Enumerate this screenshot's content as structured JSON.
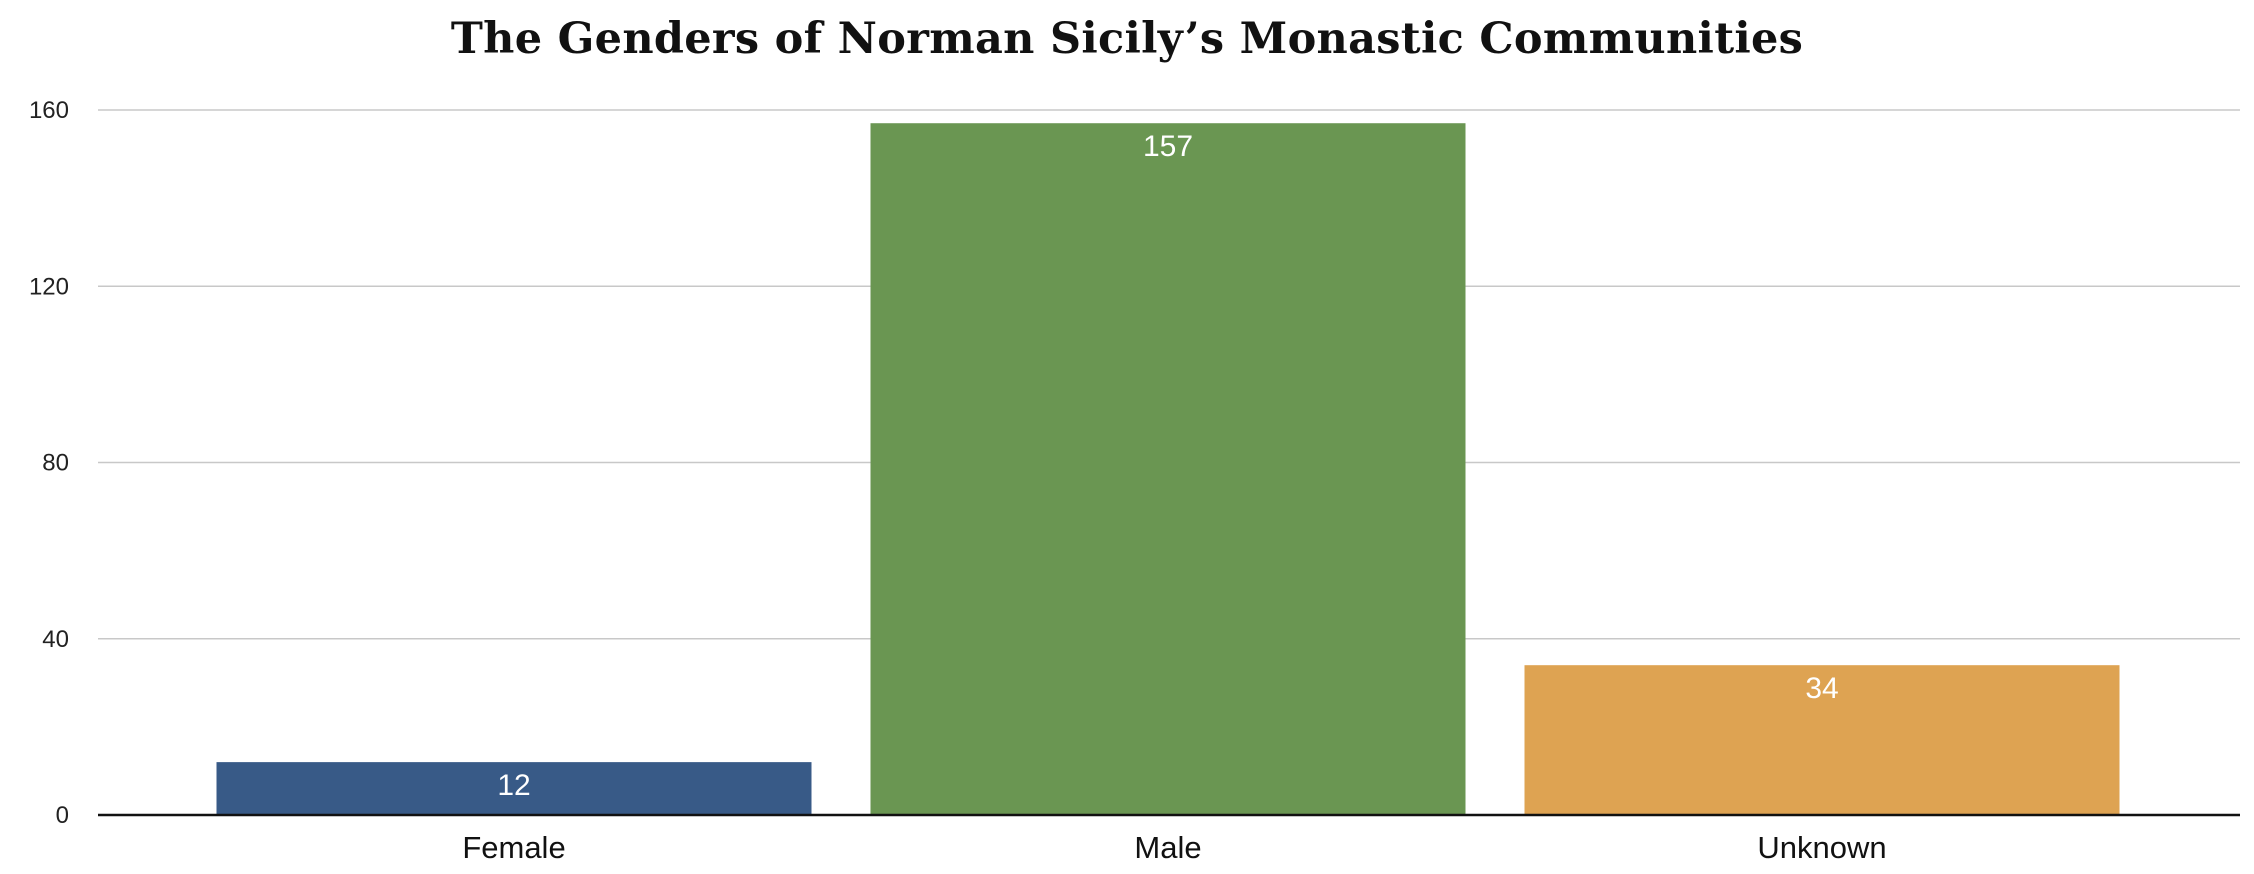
{
  "chart_data": {
    "type": "bar",
    "title": "The Genders of Norman Sicily’s Monastic Communities",
    "categories": [
      "Female",
      "Male",
      "Unknown"
    ],
    "values": [
      12,
      157,
      34
    ],
    "data_labels": [
      "12",
      "157",
      "34"
    ],
    "bar_colors": [
      "#385a87",
      "#6a9652",
      "#dea352"
    ],
    "ylim": [
      0,
      160
    ],
    "yticks": [
      0,
      40,
      80,
      120,
      160
    ],
    "ytick_labels": [
      "0",
      "40",
      "80",
      "120",
      "160"
    ],
    "xlabel": "",
    "ylabel": "",
    "grid": true,
    "legend": "none"
  }
}
